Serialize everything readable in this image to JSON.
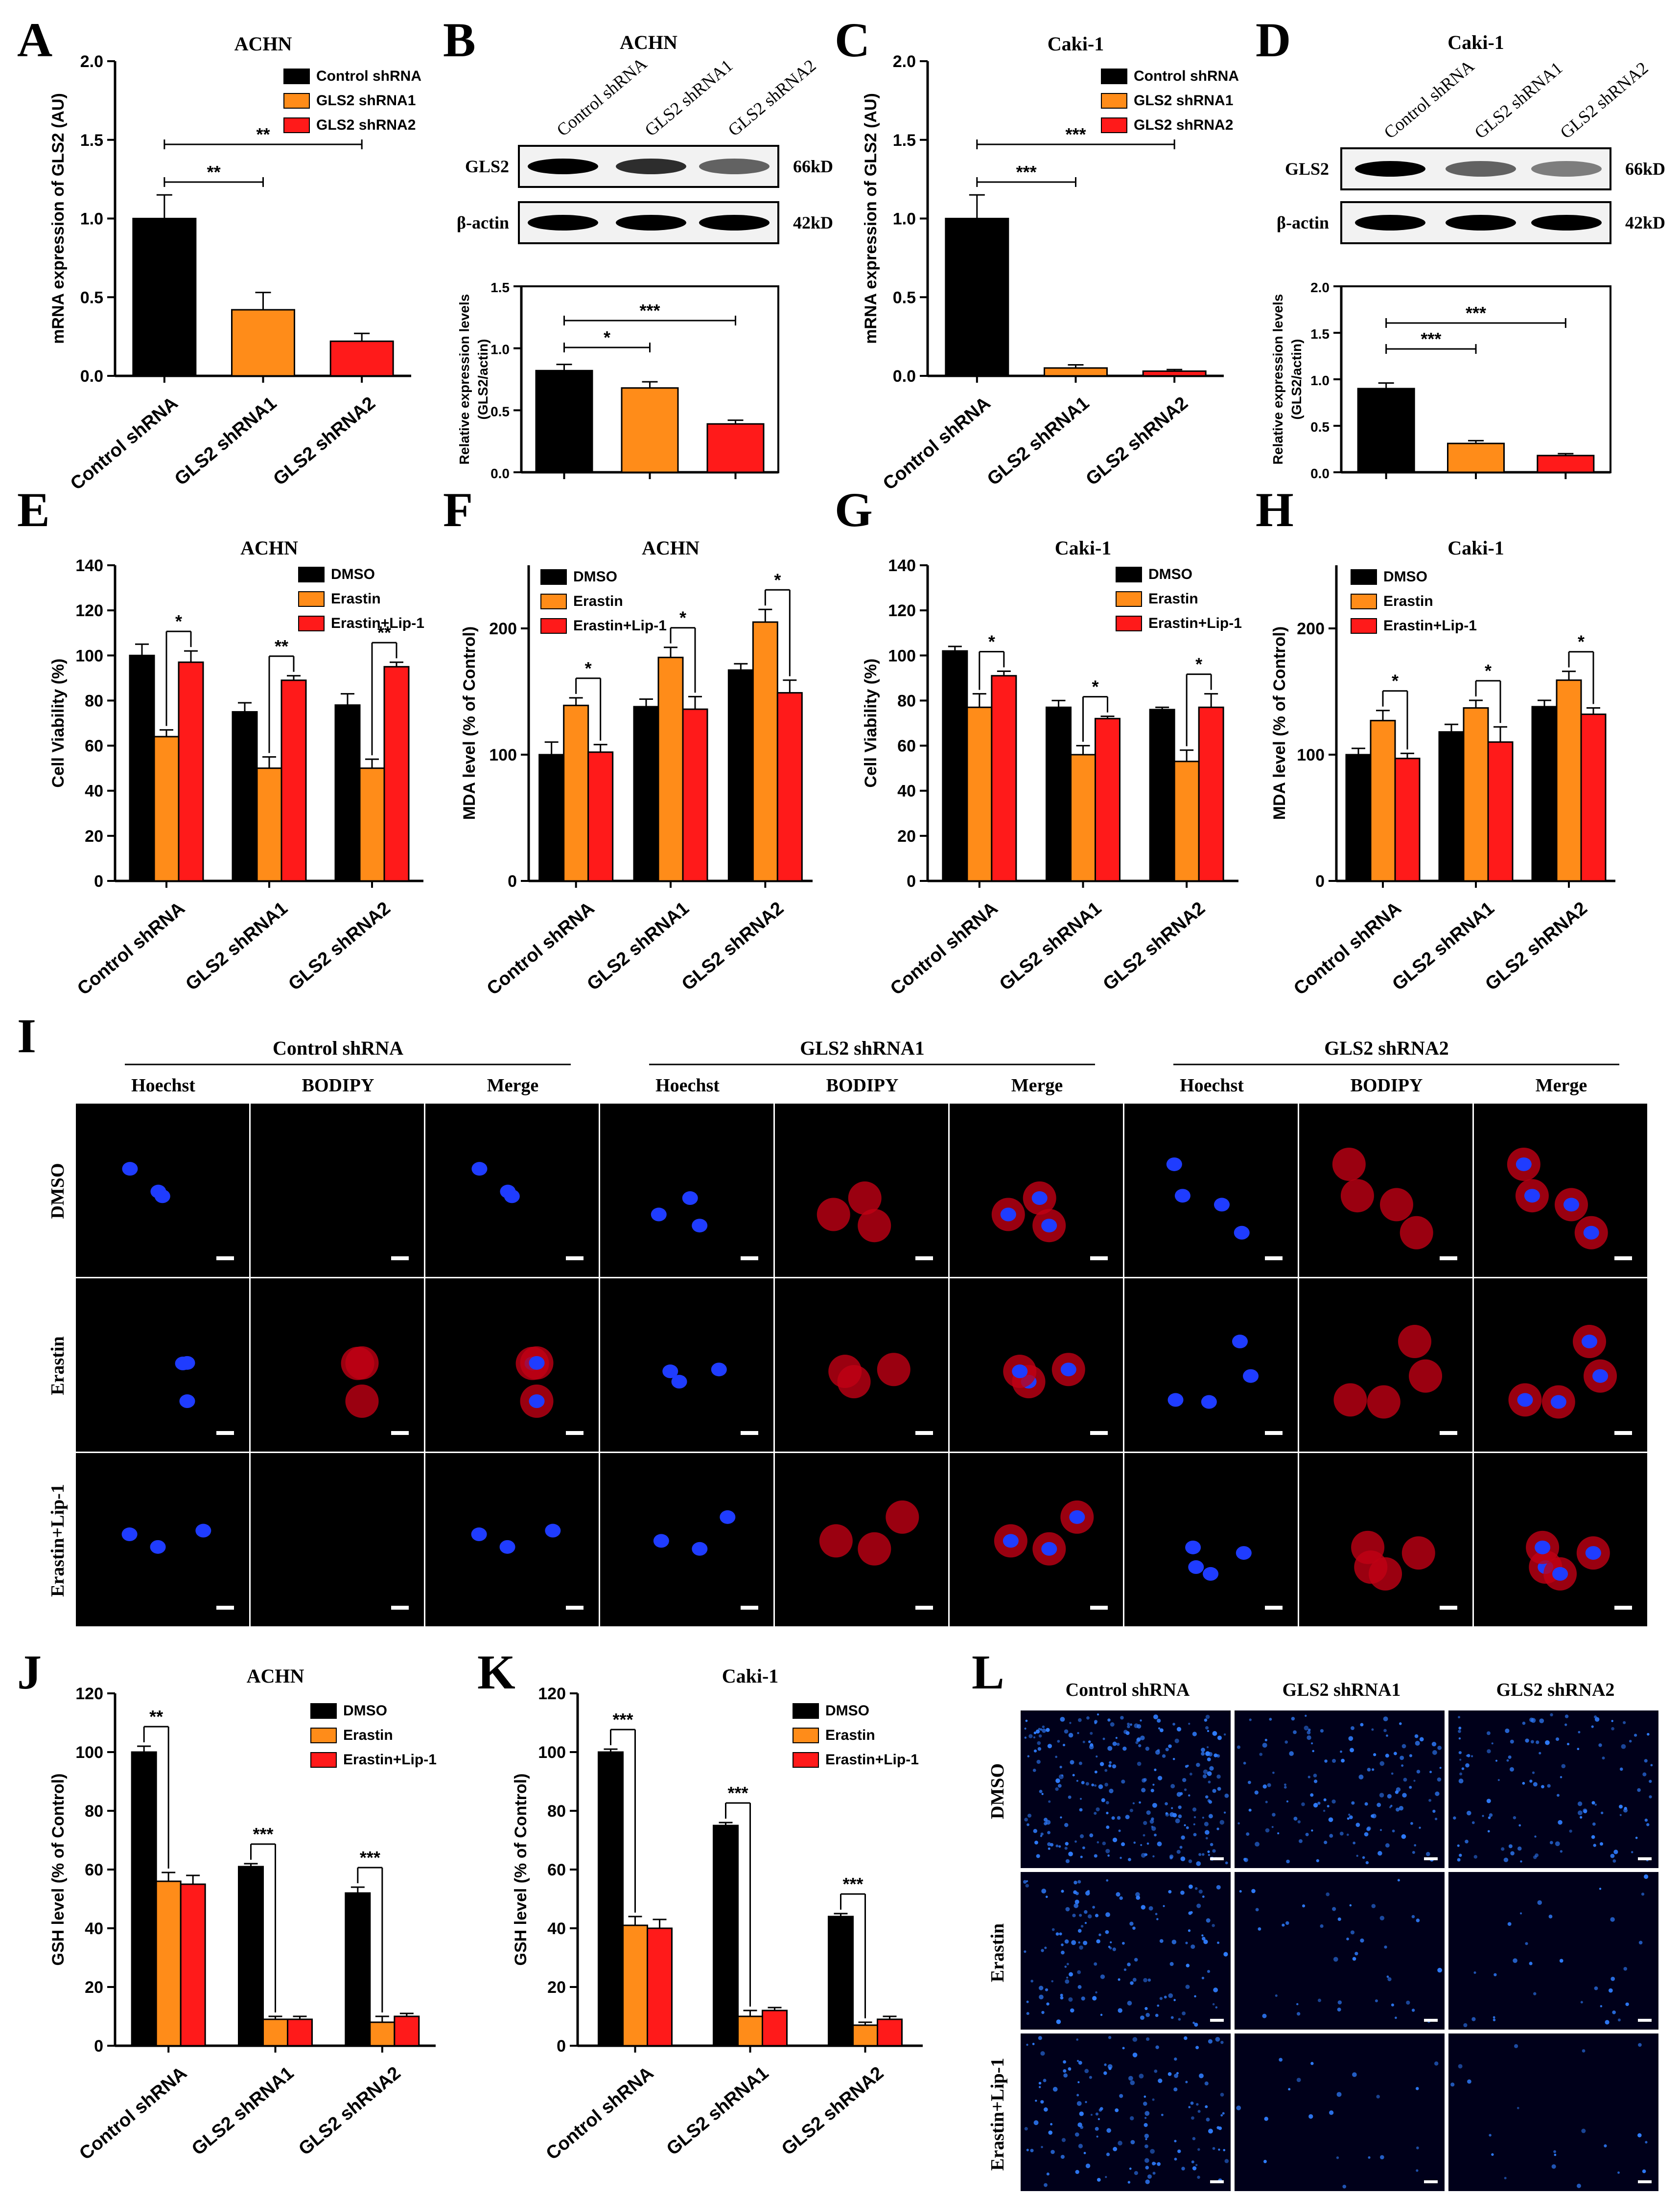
{
  "colors": {
    "black": "#000000",
    "orange": "#FF8C19",
    "red": "#FF1A1A"
  },
  "panel_letters": [
    "A",
    "B",
    "C",
    "D",
    "E",
    "F",
    "G",
    "H",
    "I",
    "J",
    "K",
    "L"
  ],
  "western": [
    {
      "panel": "B",
      "title": "ACHN",
      "lanes": [
        "Control shRNA",
        "GLS2 shRNA1",
        "GLS2 shRNA2"
      ],
      "bands": [
        {
          "label": "GLS2",
          "size": "66kD",
          "intensity": [
            1.0,
            0.75,
            0.45
          ]
        },
        {
          "label": "β-actin",
          "size": "42kD",
          "intensity": [
            1.0,
            1.0,
            1.0
          ]
        }
      ]
    },
    {
      "panel": "D",
      "title": "Caki-1",
      "lanes": [
        "Control shRNA",
        "GLS2 shRNA1",
        "GLS2 shRNA2"
      ],
      "bands": [
        {
          "label": "GLS2",
          "size": "66kD",
          "intensity": [
            1.0,
            0.45,
            0.3
          ]
        },
        {
          "label": "β-actin",
          "size": "42kD",
          "intensity": [
            1.0,
            1.0,
            1.0
          ]
        }
      ]
    }
  ],
  "chart_data": [
    {
      "panel": "A",
      "type": "bar",
      "title": "ACHN",
      "ylabel": "mRNA expression of GLS2 (AU)",
      "ylim": [
        0,
        2.0
      ],
      "ticks": [
        "0.0",
        "0.5",
        "1.0",
        "1.5",
        "2.0"
      ],
      "categories": [
        "Control shRNA",
        "GLS2 shRNA1",
        "GLS2 shRNA2"
      ],
      "series": [
        {
          "name": "Control shRNA",
          "color": "black"
        },
        {
          "name": "GLS2 shRNA1",
          "color": "orange"
        },
        {
          "name": "GLS2 shRNA2",
          "color": "red"
        }
      ],
      "values": [
        1.0,
        0.42,
        0.22
      ],
      "errors": [
        0.15,
        0.11,
        0.05
      ],
      "sig": [
        {
          "from": 0,
          "to": 1,
          "label": "**"
        },
        {
          "from": 0,
          "to": 2,
          "label": "**"
        }
      ],
      "legend": "top-right"
    },
    {
      "panel": "B",
      "type": "bar",
      "title": "",
      "ylabel": "Relative expression levels (GLS2/actin)",
      "ylim": [
        0,
        1.5
      ],
      "ticks": [
        "0.0",
        "0.5",
        "1.0",
        "1.5"
      ],
      "categories": [
        "",
        "",
        ""
      ],
      "series": [
        {
          "name": "",
          "color": "black"
        },
        {
          "name": "",
          "color": "orange"
        },
        {
          "name": "",
          "color": "red"
        }
      ],
      "values": [
        0.82,
        0.68,
        0.39
      ],
      "errors": [
        0.05,
        0.05,
        0.03
      ],
      "sig": [
        {
          "from": 0,
          "to": 1,
          "label": "*"
        },
        {
          "from": 0,
          "to": 2,
          "label": "***"
        }
      ]
    },
    {
      "panel": "C",
      "type": "bar",
      "title": "Caki-1",
      "ylabel": "mRNA expression of GLS2 (AU)",
      "ylim": [
        0,
        2.0
      ],
      "ticks": [
        "0.0",
        "0.5",
        "1.0",
        "1.5",
        "2.0"
      ],
      "categories": [
        "Control shRNA",
        "GLS2 shRNA1",
        "GLS2 shRNA2"
      ],
      "series": [
        {
          "name": "Control shRNA",
          "color": "black"
        },
        {
          "name": "GLS2 shRNA1",
          "color": "orange"
        },
        {
          "name": "GLS2 shRNA2",
          "color": "red"
        }
      ],
      "values": [
        1.0,
        0.05,
        0.03
      ],
      "errors": [
        0.15,
        0.02,
        0.01
      ],
      "sig": [
        {
          "from": 0,
          "to": 1,
          "label": "***"
        },
        {
          "from": 0,
          "to": 2,
          "label": "***"
        }
      ],
      "legend": "top-right"
    },
    {
      "panel": "D",
      "type": "bar",
      "title": "",
      "ylabel": "Relative expression levels (GLS2/actin)",
      "ylim": [
        0,
        2.0
      ],
      "ticks": [
        "0.0",
        "0.5",
        "1.0",
        "1.5",
        "2.0"
      ],
      "categories": [
        "",
        "",
        ""
      ],
      "series": [
        {
          "name": "",
          "color": "black"
        },
        {
          "name": "",
          "color": "orange"
        },
        {
          "name": "",
          "color": "red"
        }
      ],
      "values": [
        0.9,
        0.31,
        0.18
      ],
      "errors": [
        0.06,
        0.03,
        0.02
      ],
      "sig": [
        {
          "from": 0,
          "to": 1,
          "label": "***"
        },
        {
          "from": 0,
          "to": 2,
          "label": "***"
        }
      ]
    },
    {
      "panel": "E",
      "type": "bar",
      "title": "ACHN",
      "ylabel": "Cell Viability (%)",
      "ylim": [
        0,
        140
      ],
      "ticks": [
        "0",
        "20",
        "40",
        "60",
        "80",
        "100",
        "120",
        "140"
      ],
      "categories": [
        "Control shRNA",
        "GLS2 shRNA1",
        "GLS2 shRNA2"
      ],
      "series": [
        {
          "name": "DMSO",
          "color": "black",
          "values": [
            100,
            75,
            78
          ],
          "errors": [
            5,
            4,
            5
          ]
        },
        {
          "name": "Erastin",
          "color": "orange",
          "values": [
            64,
            50,
            50
          ],
          "errors": [
            3,
            5,
            4
          ]
        },
        {
          "name": "Erastin+Lip-1",
          "color": "red",
          "values": [
            97,
            89,
            95
          ],
          "errors": [
            5,
            2,
            2
          ]
        }
      ],
      "sig": [
        {
          "group": 0,
          "label": "*"
        },
        {
          "group": 1,
          "label": "**"
        },
        {
          "group": 2,
          "label": "**"
        }
      ],
      "legend": "top-right"
    },
    {
      "panel": "F",
      "type": "bar",
      "title": "ACHN",
      "ylabel": "MDA level (% of Control)",
      "ylim": [
        0,
        250
      ],
      "ticks": [
        "0",
        "100",
        "200"
      ],
      "categories": [
        "Control shRNA",
        "GLS2 shRNA1",
        "GLS2 shRNA2"
      ],
      "series": [
        {
          "name": "DMSO",
          "color": "black",
          "values": [
            100,
            138,
            167
          ],
          "errors": [
            10,
            6,
            5
          ]
        },
        {
          "name": "Erastin",
          "color": "orange",
          "values": [
            139,
            177,
            205
          ],
          "errors": [
            6,
            8,
            10
          ]
        },
        {
          "name": "Erastin+Lip-1",
          "color": "red",
          "values": [
            102,
            136,
            149
          ],
          "errors": [
            6,
            10,
            10
          ]
        }
      ],
      "sig": [
        {
          "group": 0,
          "label": "*"
        },
        {
          "group": 1,
          "label": "*"
        },
        {
          "group": 2,
          "label": "*"
        }
      ],
      "legend": "top-left"
    },
    {
      "panel": "G",
      "type": "bar",
      "title": "Caki-1",
      "ylabel": "Cell Viability (%)",
      "ylim": [
        0,
        140
      ],
      "ticks": [
        "0",
        "20",
        "40",
        "60",
        "80",
        "100",
        "120",
        "140"
      ],
      "categories": [
        "Control shRNA",
        "GLS2 shRNA1",
        "GLS2 shRNA2"
      ],
      "series": [
        {
          "name": "DMSO",
          "color": "black",
          "values": [
            102,
            77,
            76
          ],
          "errors": [
            2,
            3,
            1
          ]
        },
        {
          "name": "Erastin",
          "color": "orange",
          "values": [
            77,
            56,
            53
          ],
          "errors": [
            6,
            4,
            5
          ]
        },
        {
          "name": "Erastin+Lip-1",
          "color": "red",
          "values": [
            91,
            72,
            77
          ],
          "errors": [
            2,
            1,
            6
          ]
        }
      ],
      "sig": [
        {
          "group": 0,
          "label": "*"
        },
        {
          "group": 1,
          "label": "*"
        },
        {
          "group": 2,
          "label": "*"
        }
      ],
      "legend": "top-right"
    },
    {
      "panel": "H",
      "type": "bar",
      "title": "Caki-1",
      "ylabel": "MDA level (% of Control)",
      "ylim": [
        0,
        250
      ],
      "ticks": [
        "0",
        "100",
        "200"
      ],
      "categories": [
        "Control shRNA",
        "GLS2 shRNA1",
        "GLS2 shRNA2"
      ],
      "series": [
        {
          "name": "DMSO",
          "color": "black",
          "values": [
            100,
            118,
            138
          ],
          "errors": [
            5,
            6,
            5
          ]
        },
        {
          "name": "Erastin",
          "color": "orange",
          "values": [
            127,
            137,
            159
          ],
          "errors": [
            8,
            6,
            7
          ]
        },
        {
          "name": "Erastin+Lip-1",
          "color": "red",
          "values": [
            97,
            110,
            132
          ],
          "errors": [
            4,
            12,
            5
          ]
        }
      ],
      "sig": [
        {
          "group": 0,
          "label": "*"
        },
        {
          "group": 1,
          "label": "*"
        },
        {
          "group": 2,
          "label": "*"
        }
      ],
      "legend": "top-left"
    },
    {
      "panel": "J",
      "type": "bar",
      "title": "ACHN",
      "ylabel": "GSH level (% of Control)",
      "ylim": [
        0,
        120
      ],
      "ticks": [
        "0",
        "20",
        "40",
        "60",
        "80",
        "100",
        "120"
      ],
      "categories": [
        "Control shRNA",
        "GLS2 shRNA1",
        "GLS2 shRNA2"
      ],
      "series": [
        {
          "name": "DMSO",
          "color": "black",
          "values": [
            100,
            61,
            52
          ],
          "errors": [
            2,
            1,
            2
          ]
        },
        {
          "name": "Erastin",
          "color": "orange",
          "values": [
            56,
            9,
            8
          ],
          "errors": [
            3,
            1,
            2
          ]
        },
        {
          "name": "Erastin+Lip-1",
          "color": "red",
          "values": [
            55,
            9,
            10
          ],
          "errors": [
            3,
            1,
            1
          ]
        }
      ],
      "sig": [
        {
          "group": 0,
          "label": "**"
        },
        {
          "group": 1,
          "label": "***"
        },
        {
          "group": 2,
          "label": "***"
        }
      ],
      "legend": "top-right"
    },
    {
      "panel": "K",
      "type": "bar",
      "title": "Caki-1",
      "ylabel": "GSH level (% of Control)",
      "ylim": [
        0,
        120
      ],
      "ticks": [
        "0",
        "20",
        "40",
        "60",
        "80",
        "100",
        "120"
      ],
      "categories": [
        "Control shRNA",
        "GLS2 shRNA1",
        "GLS2 shRNA2"
      ],
      "series": [
        {
          "name": "DMSO",
          "color": "black",
          "values": [
            100,
            75,
            44
          ],
          "errors": [
            1,
            1,
            1
          ]
        },
        {
          "name": "Erastin",
          "color": "orange",
          "values": [
            41,
            10,
            7
          ],
          "errors": [
            3,
            2,
            1
          ]
        },
        {
          "name": "Erastin+Lip-1",
          "color": "red",
          "values": [
            40,
            12,
            9
          ],
          "errors": [
            3,
            1,
            1
          ]
        }
      ],
      "sig": [
        {
          "group": 0,
          "label": "***"
        },
        {
          "group": 1,
          "label": "***"
        },
        {
          "group": 2,
          "label": "***"
        }
      ],
      "legend": "top-right"
    }
  ],
  "imaging_I": {
    "groups": [
      "Control shRNA",
      "GLS2 shRNA1",
      "GLS2 shRNA2"
    ],
    "channels": [
      "Hoechst",
      "BODIPY",
      "Merge"
    ],
    "rows": [
      "DMSO",
      "Erastin",
      "Erastin+Lip-1"
    ]
  },
  "imaging_L": {
    "groups": [
      "Control shRNA",
      "GLS2 shRNA1",
      "GLS2 shRNA2"
    ],
    "rows": [
      "DMSO",
      "Erastin",
      "Erastin+Lip-1"
    ]
  }
}
